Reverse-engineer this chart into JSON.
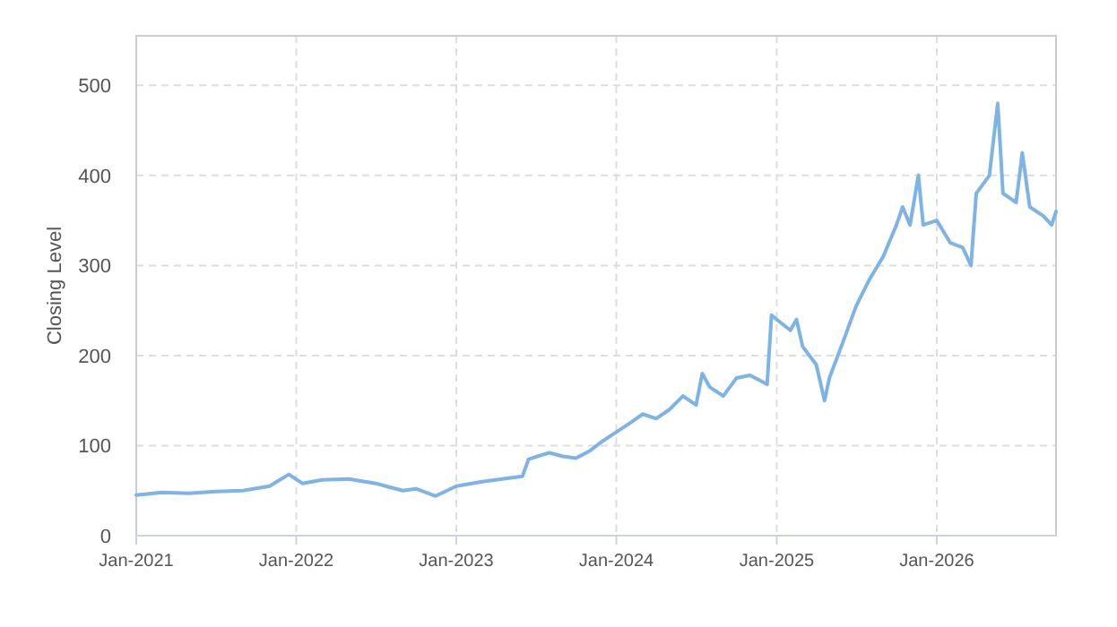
{
  "chart_data": {
    "type": "line",
    "ylabel": "Closing Level",
    "grid": true,
    "line_style": "solid",
    "xlim": [
      "2021-01-01",
      "2026-09-30"
    ],
    "ylim": [
      0,
      555
    ],
    "xticks": [
      {
        "value": "2021-01-01",
        "label": "Jan-2021"
      },
      {
        "value": "2022-01-01",
        "label": "Jan-2022"
      },
      {
        "value": "2023-01-01",
        "label": "Jan-2023"
      },
      {
        "value": "2024-01-01",
        "label": "Jan-2024"
      },
      {
        "value": "2025-01-01",
        "label": "Jan-2025"
      },
      {
        "value": "2026-01-01",
        "label": "Jan-2026"
      }
    ],
    "yticks": [
      0,
      100,
      200,
      300,
      400,
      500
    ],
    "x": [
      "2021-01-01",
      "2021-03-01",
      "2021-05-01",
      "2021-07-01",
      "2021-09-01",
      "2021-11-01",
      "2021-12-15",
      "2022-01-15",
      "2022-03-01",
      "2022-05-01",
      "2022-07-01",
      "2022-08-01",
      "2022-09-01",
      "2022-10-01",
      "2022-11-15",
      "2023-01-01",
      "2023-03-01",
      "2023-05-01",
      "2023-06-01",
      "2023-06-15",
      "2023-08-01",
      "2023-09-01",
      "2023-10-01",
      "2023-11-01",
      "2023-12-01",
      "2024-01-01",
      "2024-02-01",
      "2024-03-01",
      "2024-04-01",
      "2024-05-01",
      "2024-06-01",
      "2024-07-01",
      "2024-07-15",
      "2024-08-01",
      "2024-09-01",
      "2024-10-01",
      "2024-11-01",
      "2024-12-10",
      "2024-12-20",
      "2025-01-01",
      "2025-02-01",
      "2025-02-15",
      "2025-03-01",
      "2025-04-01",
      "2025-04-20",
      "2025-05-01",
      "2025-06-01",
      "2025-07-01",
      "2025-08-01",
      "2025-09-01",
      "2025-10-01",
      "2025-10-15",
      "2025-11-01",
      "2025-11-20",
      "2025-12-01",
      "2026-01-01",
      "2026-02-01",
      "2026-03-01",
      "2026-03-20",
      "2026-04-01",
      "2026-05-01",
      "2026-05-20",
      "2026-06-01",
      "2026-07-01",
      "2026-07-15",
      "2026-08-01",
      "2026-09-01",
      "2026-09-20",
      "2026-09-30"
    ],
    "series": [
      {
        "color": "#7eb3e6",
        "values": [
          45,
          48,
          47,
          49,
          50,
          55,
          68,
          58,
          62,
          63,
          58,
          54,
          50,
          52,
          44,
          55,
          60,
          64,
          66,
          85,
          92,
          88,
          86,
          94,
          105,
          115,
          125,
          135,
          130,
          140,
          155,
          145,
          180,
          165,
          155,
          175,
          178,
          168,
          245,
          240,
          228,
          240,
          210,
          190,
          150,
          175,
          215,
          255,
          285,
          310,
          345,
          365,
          345,
          400,
          345,
          350,
          325,
          320,
          300,
          380,
          400,
          480,
          380,
          370,
          425,
          365,
          355,
          345,
          360
        ]
      }
    ]
  }
}
